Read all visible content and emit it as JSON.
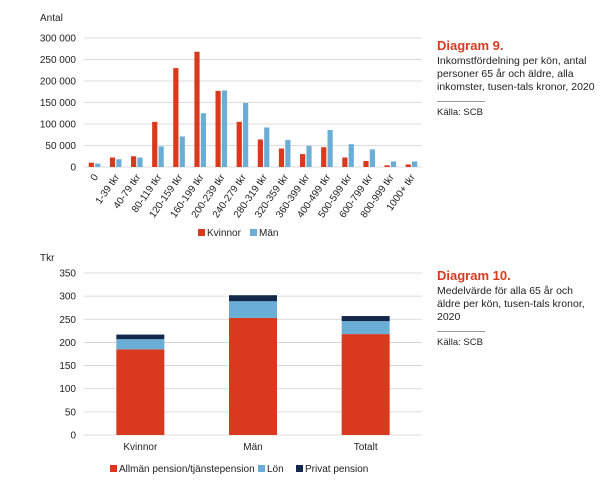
{
  "colors": {
    "women": "#d9391c",
    "men": "#6aaed6",
    "privat": "#14284b",
    "grid": "#d0d0d0",
    "accent": "#d9391c"
  },
  "diagram9": {
    "title": "Diagram 9.",
    "description": "Inkomstfördelning per kön, antal personer 65 år och äldre, alla inkomster, tusen-tals kronor, 2020",
    "source": "Källa: SCB"
  },
  "diagram10": {
    "title": "Diagram 10.",
    "description": "Medelvärde för alla 65 år och äldre per kön, tusen-tals kronor, 2020",
    "source": "Källa: SCB"
  },
  "chart_data": [
    {
      "type": "bar",
      "title": "",
      "ylabel": "Antal",
      "xlabel": "",
      "ylim": [
        0,
        300000
      ],
      "yticks": [
        0,
        50000,
        100000,
        150000,
        200000,
        250000,
        300000
      ],
      "ytick_labels": [
        "0",
        "50 000",
        "100 000",
        "150 000",
        "200 000",
        "250 000",
        "300 000"
      ],
      "categories": [
        "0",
        "1-39 tkr",
        "40-79 tkr",
        "80-119 tkr",
        "120-159 tkr",
        "160-199 tkr",
        "200-239 tkr",
        "240-279 tkr",
        "280-319 tkr",
        "320-359 tkr",
        "360-399 tkr",
        "400-499 tkr",
        "500-599 tkr",
        "600-799 tkr",
        "800-999 tkr",
        "1000+ tkr"
      ],
      "series": [
        {
          "name": "Kvinnor",
          "values": [
            10000,
            22000,
            25000,
            105000,
            230000,
            268000,
            177000,
            105000,
            64000,
            43000,
            30000,
            46000,
            22000,
            14000,
            4000,
            6000
          ]
        },
        {
          "name": "Män",
          "values": [
            8000,
            18000,
            22000,
            48000,
            71000,
            125000,
            178000,
            149000,
            92000,
            63000,
            49000,
            86000,
            53000,
            41000,
            13000,
            13000
          ]
        }
      ],
      "legend": "bottom-center"
    },
    {
      "type": "bar",
      "stacked": true,
      "title": "",
      "ylabel": "Tkr",
      "xlabel": "",
      "ylim": [
        0,
        350
      ],
      "yticks": [
        0,
        50,
        100,
        150,
        200,
        250,
        300,
        350
      ],
      "ytick_labels": [
        "0",
        "50",
        "100",
        "150",
        "200",
        "250",
        "300",
        "350"
      ],
      "categories": [
        "Kvinnor",
        "Män",
        "Totalt"
      ],
      "series": [
        {
          "name": "Allmän pension/tjänstepension",
          "values": [
            185,
            253,
            218
          ]
        },
        {
          "name": "Lön",
          "values": [
            22,
            36,
            28
          ]
        },
        {
          "name": "Privat pension",
          "values": [
            10,
            13,
            11
          ]
        }
      ],
      "legend": "bottom-center"
    }
  ]
}
